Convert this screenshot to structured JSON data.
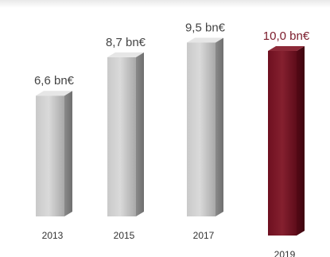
{
  "chart_data": {
    "type": "bar",
    "categories": [
      "2013",
      "2015",
      "2017",
      "2019"
    ],
    "values": [
      6.6,
      8.7,
      9.5,
      10.0
    ],
    "value_labels": [
      "6,6 bn€",
      "8,7 bn€",
      "9,5 bn€",
      "10,0 bn€"
    ],
    "highlight_index": 3,
    "colors": {
      "default_bar": "#9c9c9c",
      "highlight_bar": "#7a1a2a",
      "highlight_label": "#7a1a2a",
      "label": "#444444",
      "tick_label": "#333333"
    },
    "title": "",
    "xlabel": "",
    "ylabel": "",
    "ylim": [
      0,
      10.5
    ],
    "grid": false,
    "legend": "none"
  }
}
